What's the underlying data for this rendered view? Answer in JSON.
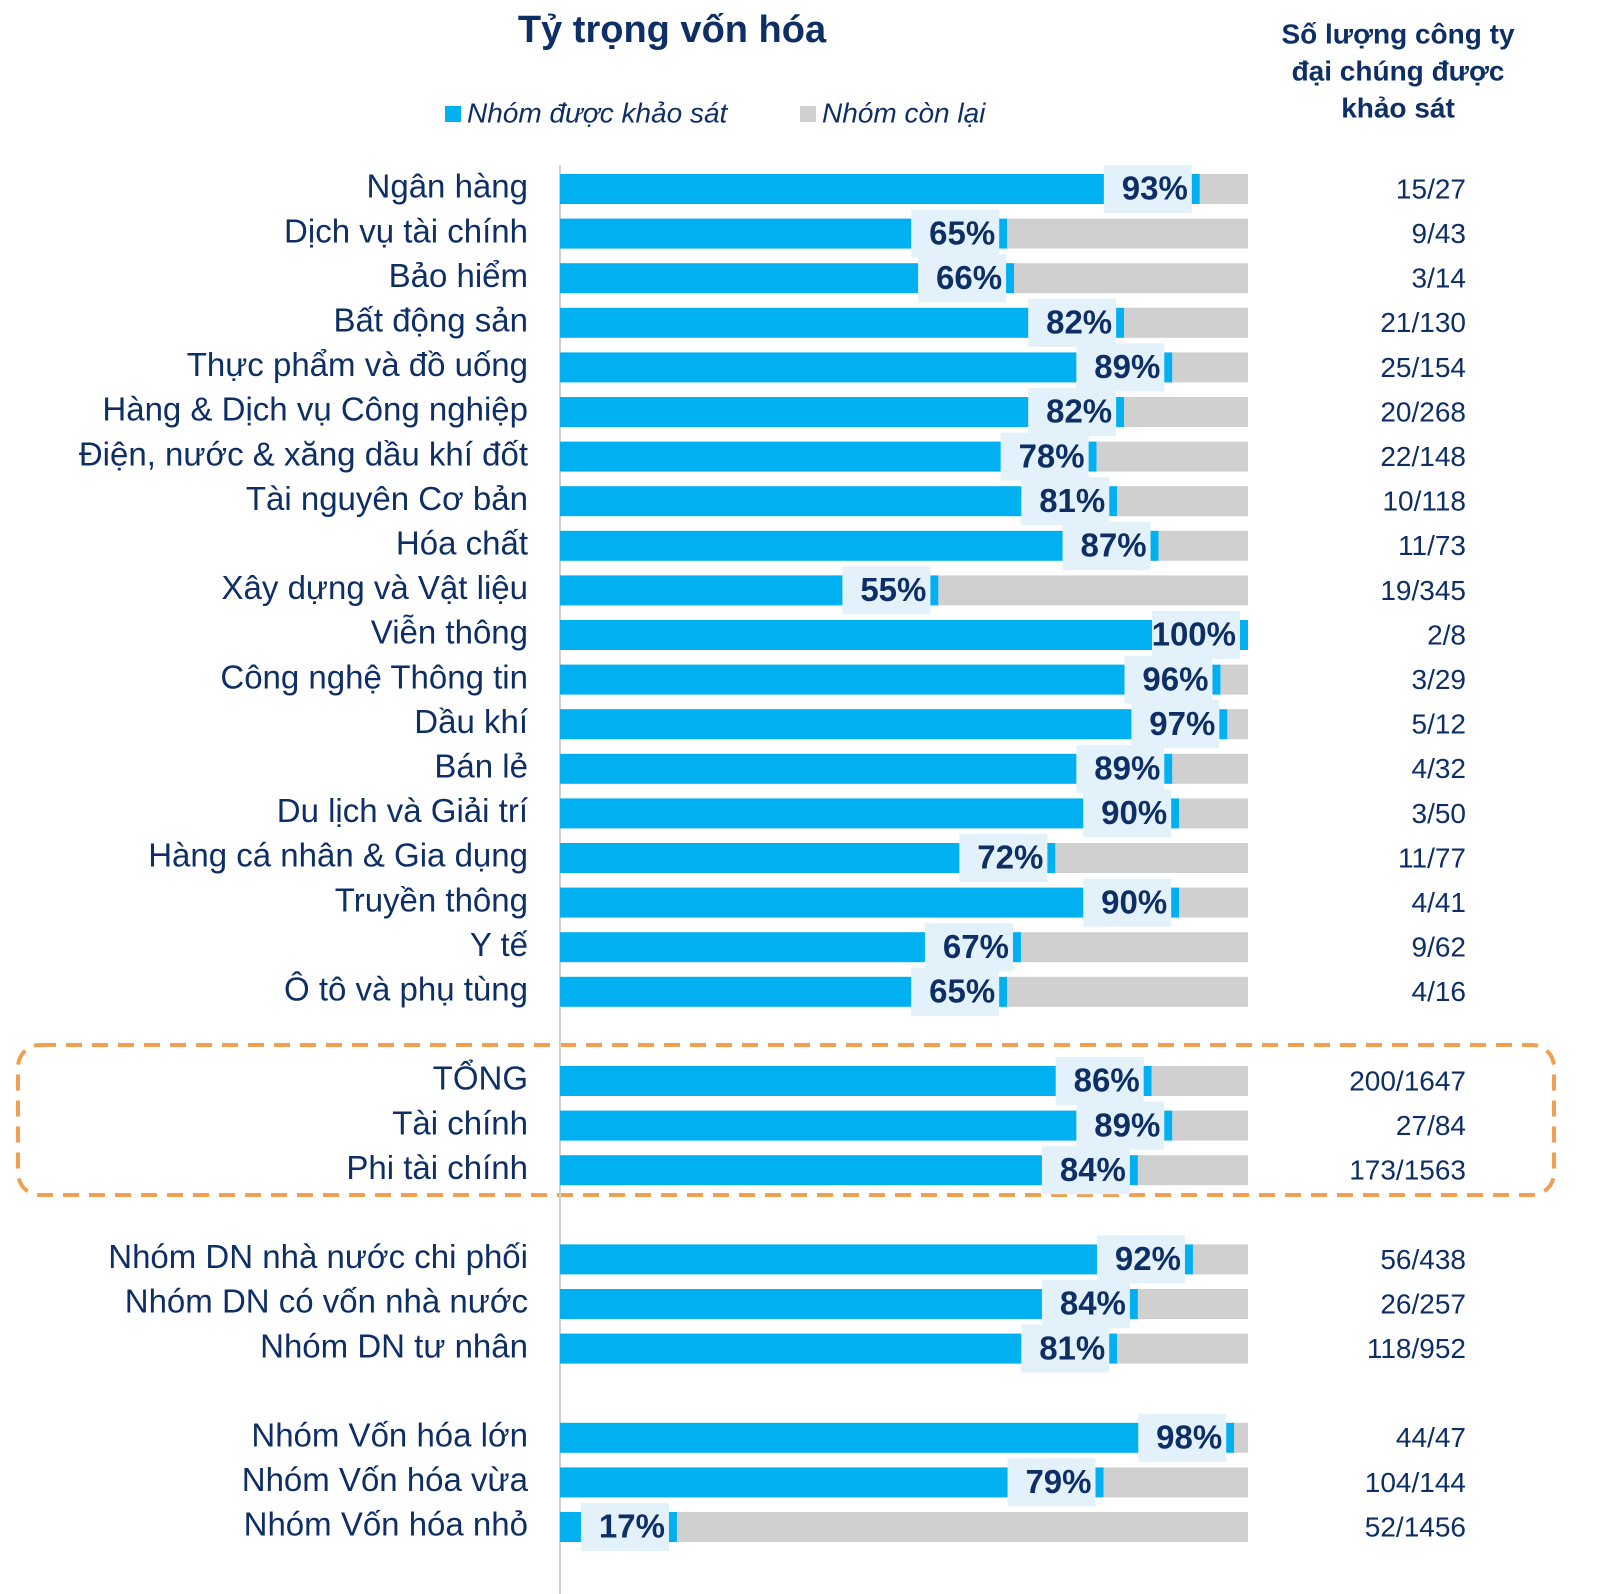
{
  "chart_data": {
    "type": "stacked-bar-horizontal",
    "title": "Tỷ trọng vốn hóa",
    "categories": [
      "Ngân hàng",
      "Dịch vụ tài chính",
      "Bảo hiểm",
      "Bất động sản",
      "Thực phẩm và đồ uống",
      "Hàng & Dịch vụ Công nghiệp",
      "Điện, nước & xăng dầu khí đốt",
      "Tài nguyên Cơ bản",
      "Hóa chất",
      "Xây dựng và Vật liệu",
      "Viễn thông",
      "Công nghệ Thông tin",
      "Dầu khí",
      "Bán lẻ",
      "Du lịch và Giải trí",
      "Hàng cá nhân & Gia dụng",
      "Truyền thông",
      "Y tế",
      "Ô tô và phụ tùng",
      "TỔNG",
      "Tài chính",
      "Phi tài chính",
      "Nhóm DN nhà nước chi phối",
      "Nhóm DN có vốn nhà nước",
      "Nhóm DN tư nhân",
      "Nhóm Vốn hóa lớn",
      "Nhóm Vốn hóa vừa",
      "Nhóm Vốn hóa nhỏ"
    ],
    "series": [
      {
        "name": "Nhóm được khảo sát",
        "color": "#00b0f0",
        "values": [
          93,
          65,
          66,
          82,
          89,
          82,
          78,
          81,
          87,
          55,
          100,
          96,
          97,
          89,
          90,
          72,
          90,
          67,
          65,
          86,
          89,
          84,
          92,
          84,
          81,
          98,
          79,
          17
        ],
        "value_labels": [
          "93%",
          "65%",
          "66%",
          "82%",
          "89%",
          "82%",
          "78%",
          "81%",
          "87%",
          "55%",
          "100%",
          "96%",
          "97%",
          "89%",
          "90%",
          "72%",
          "90%",
          "67%",
          "65%",
          "86%",
          "89%",
          "84%",
          "92%",
          "84%",
          "81%",
          "98%",
          "79%",
          "17%"
        ]
      },
      {
        "name": "Nhóm còn lại",
        "color": "#d0d0d0",
        "values": [
          7,
          35,
          34,
          18,
          11,
          18,
          22,
          19,
          13,
          45,
          0,
          4,
          3,
          11,
          10,
          28,
          10,
          33,
          35,
          14,
          11,
          16,
          8,
          16,
          19,
          2,
          21,
          83
        ]
      }
    ],
    "counts_title": [
      "Số lượng công ty",
      "đại chúng được",
      "khảo sát"
    ],
    "counts": [
      "15/27",
      "9/43",
      "3/14",
      "21/130",
      "25/154",
      "20/268",
      "22/148",
      "10/118",
      "11/73",
      "19/345",
      "2/8",
      "3/29",
      "5/12",
      "4/32",
      "3/50",
      "11/77",
      "4/41",
      "9/62",
      "4/16",
      "200/1647",
      "27/84",
      "173/1563",
      "56/438",
      "26/257",
      "118/952",
      "44/47",
      "104/144",
      "52/1456"
    ]
  }
}
